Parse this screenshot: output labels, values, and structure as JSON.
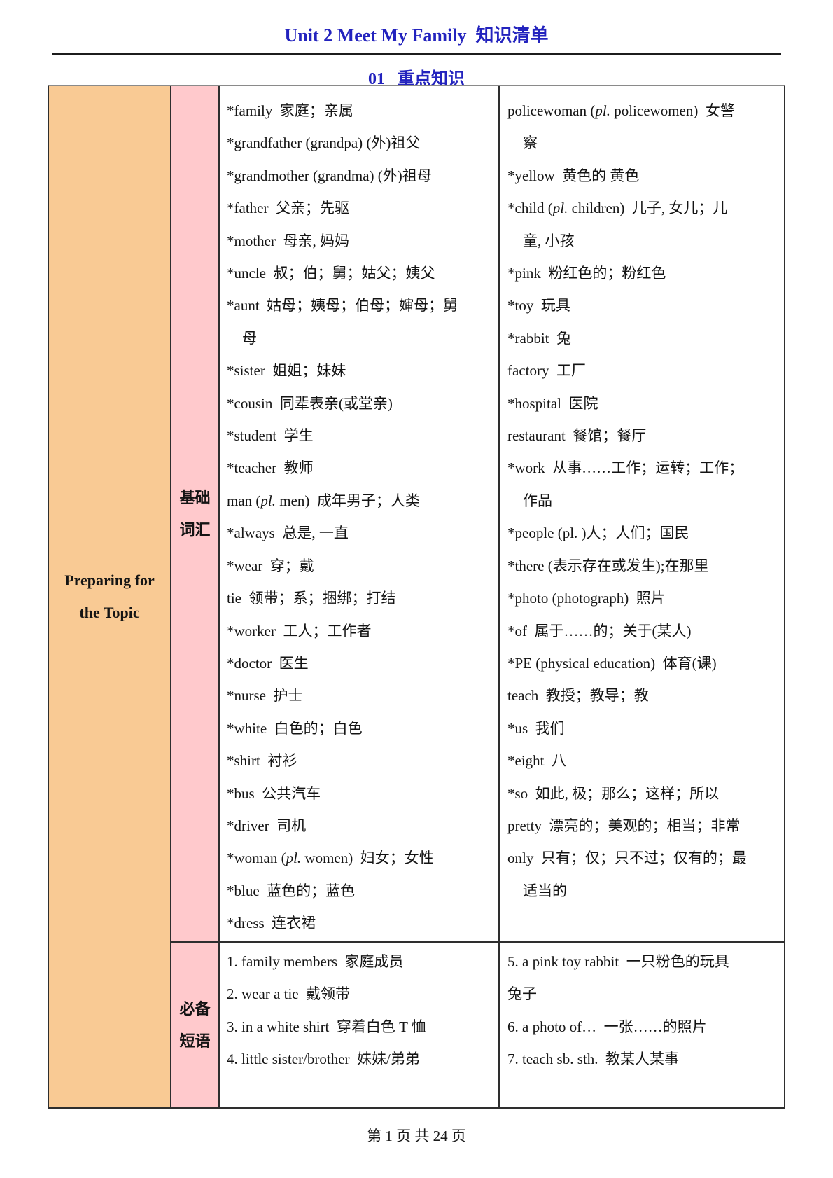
{
  "colors": {
    "peach": "#f9ca94",
    "pink": "#ffc9cc",
    "blue": "#2323be",
    "border": "#2e2e2e",
    "text": "#141414",
    "bg": "#ffffff"
  },
  "page": {
    "title": "Unit 2 Meet My Family  知识清单",
    "section_heading": "01   重点知识",
    "footer": "第 1 页 共 24 页"
  },
  "table": {
    "topic": {
      "line1": "Preparing for",
      "line2": "the Topic"
    },
    "vocab_row": {
      "label_line1": "基础",
      "label_line2": "词汇",
      "left_lines": [
        {
          "text": "*family  家庭；亲属",
          "cont": false
        },
        {
          "text": "*grandfather (grandpa) (外)祖父",
          "cont": false
        },
        {
          "text": "*grandmother (grandma) (外)祖母",
          "cont": false
        },
        {
          "text": "*father  父亲；先驱",
          "cont": false
        },
        {
          "text": "*mother  母亲, 妈妈",
          "cont": false
        },
        {
          "text": "*uncle  叔；伯；舅；姑父；姨父",
          "cont": false
        },
        {
          "text": "*aunt  姑母；姨母；伯母；婶母；舅",
          "cont": false
        },
        {
          "text": "母",
          "cont": true
        },
        {
          "text": "*sister  姐姐；妹妹",
          "cont": false
        },
        {
          "text": "*cousin  同辈表亲(或堂亲)",
          "cont": false
        },
        {
          "text": "*student  学生",
          "cont": false
        },
        {
          "text": "*teacher  教师",
          "cont": false
        },
        {
          "text": "man ({{pl.}} men)  成年男子；人类",
          "cont": false
        },
        {
          "text": "*always  总是, 一直",
          "cont": false
        },
        {
          "text": "*wear  穿；戴",
          "cont": false
        },
        {
          "text": "tie  领带；系；捆绑；打结",
          "cont": false
        },
        {
          "text": "*worker  工人；工作者",
          "cont": false
        },
        {
          "text": "*doctor  医生",
          "cont": false
        },
        {
          "text": "*nurse  护士",
          "cont": false
        },
        {
          "text": "*white  白色的；白色",
          "cont": false
        },
        {
          "text": "*shirt  衬衫",
          "cont": false
        },
        {
          "text": "*bus  公共汽车",
          "cont": false
        },
        {
          "text": "*driver  司机",
          "cont": false
        },
        {
          "text": "*woman ({{pl.}} women)  妇女；女性",
          "cont": false
        },
        {
          "text": "*blue  蓝色的；蓝色",
          "cont": false
        },
        {
          "text": "*dress  连衣裙",
          "cont": false
        }
      ],
      "right_lines": [
        {
          "text": "policewoman ({{pl.}} policewomen)  女警",
          "cont": false
        },
        {
          "text": "察",
          "cont": true
        },
        {
          "text": "*yellow  黄色的 黄色",
          "cont": false
        },
        {
          "text": "*child ({{pl.}} children)  儿子, 女儿；儿",
          "cont": false
        },
        {
          "text": "童, 小孩",
          "cont": true
        },
        {
          "text": "*pink  粉红色的；粉红色",
          "cont": false
        },
        {
          "text": "*toy  玩具",
          "cont": false
        },
        {
          "text": "*rabbit  兔",
          "cont": false
        },
        {
          "text": "factory  工厂",
          "cont": false
        },
        {
          "text": "*hospital  医院",
          "cont": false
        },
        {
          "text": "restaurant  餐馆；餐厅",
          "cont": false
        },
        {
          "text": "*work  从事……工作；运转；工作；",
          "cont": false
        },
        {
          "text": "作品",
          "cont": true
        },
        {
          "text": "*people (pl. )人；人们；国民",
          "cont": false
        },
        {
          "text": "*there (表示存在或发生);在那里",
          "cont": false
        },
        {
          "text": "*photo (photograph)  照片",
          "cont": false
        },
        {
          "text": "*of  属于……的；关于(某人)",
          "cont": false
        },
        {
          "text": "*PE (physical education)  体育(课)",
          "cont": false
        },
        {
          "text": "teach  教授；教导；教",
          "cont": false
        },
        {
          "text": "*us  我们",
          "cont": false
        },
        {
          "text": "*eight  八",
          "cont": false
        },
        {
          "text": "*so  如此, 极；那么；这样；所以",
          "cont": false
        },
        {
          "text": "pretty  漂亮的；美观的；相当；非常",
          "cont": false
        },
        {
          "text": "only  只有；仅；只不过；仅有的；最",
          "cont": false
        },
        {
          "text": "适当的",
          "cont": true
        }
      ]
    },
    "phrase_row": {
      "label_line1": "必备",
      "label_line2": "短语",
      "left_lines": [
        {
          "text": "1. family members  家庭成员",
          "cont": false
        },
        {
          "text": "2. wear a tie  戴领带",
          "cont": false
        },
        {
          "text": "3. in a white shirt  穿着白色 T 恤",
          "cont": false
        },
        {
          "text": "4. little sister/brother  妹妹/弟弟",
          "cont": false
        }
      ],
      "right_lines": [
        {
          "text": "5. a pink toy rabbit  一只粉色的玩具",
          "cont": false
        },
        {
          "text": "兔子",
          "cont": false
        },
        {
          "text": "6. a photo of…  一张……的照片",
          "cont": false
        },
        {
          "text": "7. teach sb. sth.  教某人某事",
          "cont": false
        }
      ]
    }
  }
}
